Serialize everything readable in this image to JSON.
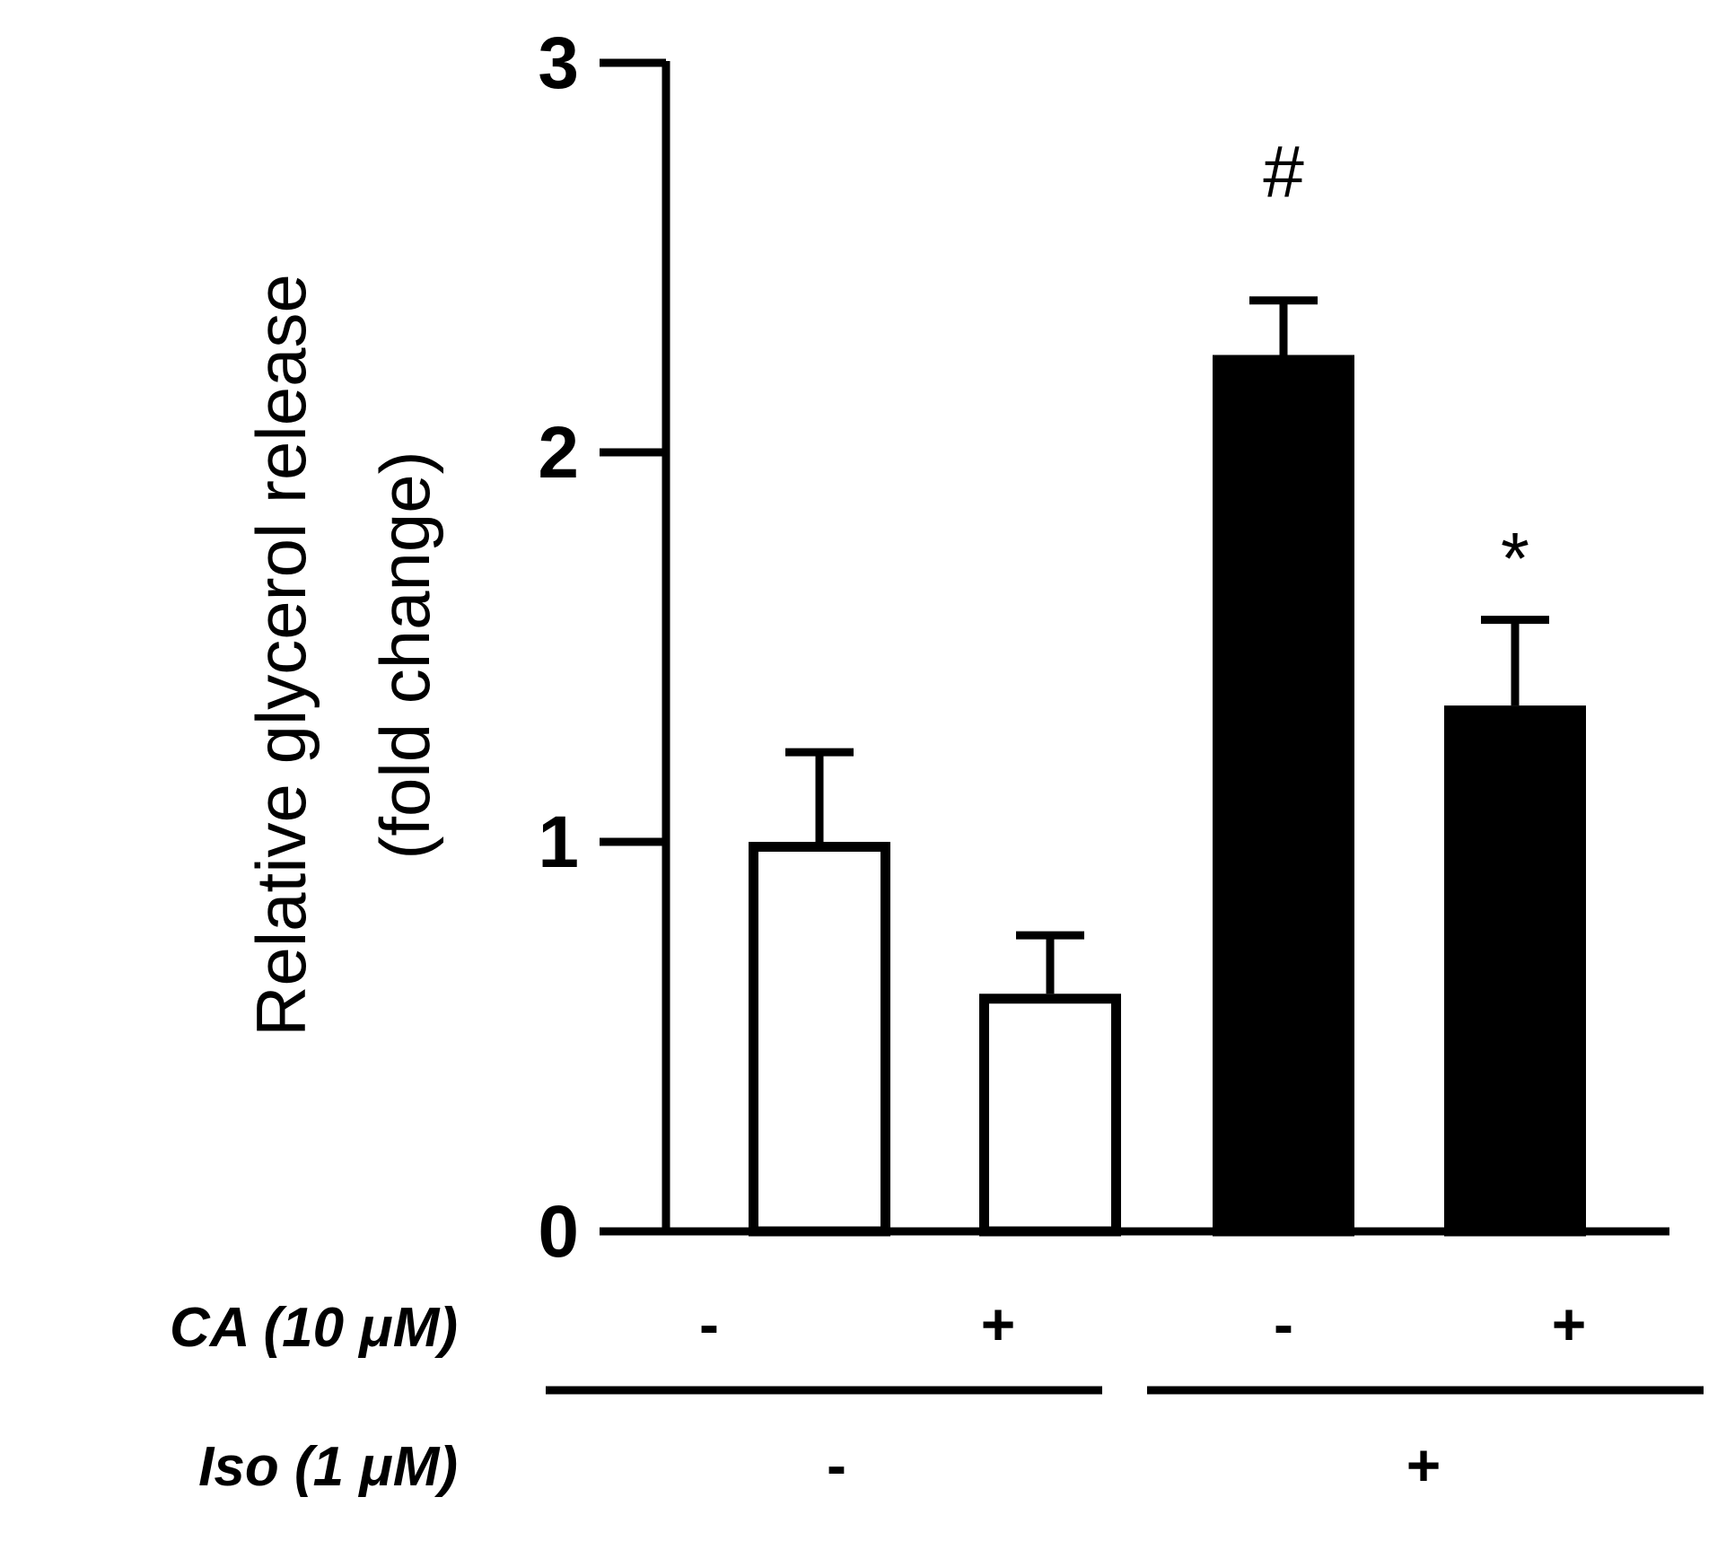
{
  "chart_data": {
    "type": "bar",
    "ylabel": "Relative glycerol release (fold change)",
    "ylabel_lines": [
      "Relative glycerol release",
      "(fold change)"
    ],
    "ylim": [
      0,
      3
    ],
    "yticks": [
      "0",
      "1",
      "2",
      "3"
    ],
    "grid": false,
    "bars": [
      {
        "value": 1.0,
        "error": 0.23,
        "filled": false,
        "annotation": ""
      },
      {
        "value": 0.61,
        "error": 0.15,
        "filled": false,
        "annotation": ""
      },
      {
        "value": 2.25,
        "error": 0.14,
        "filled": true,
        "annotation": "#"
      },
      {
        "value": 1.35,
        "error": 0.22,
        "filled": true,
        "annotation": "*"
      }
    ],
    "treatments": [
      {
        "label": "CA (10 μM)",
        "signs": [
          "-",
          "+",
          "-",
          "+"
        ]
      },
      {
        "label": "Iso (1 μM)",
        "groups": [
          {
            "sign": "-",
            "bars": [
              0,
              1
            ]
          },
          {
            "sign": "+",
            "bars": [
              2,
              3
            ]
          }
        ]
      }
    ],
    "colors": {
      "filled": "#000000",
      "open": "#ffffff",
      "stroke": "#000000"
    }
  }
}
